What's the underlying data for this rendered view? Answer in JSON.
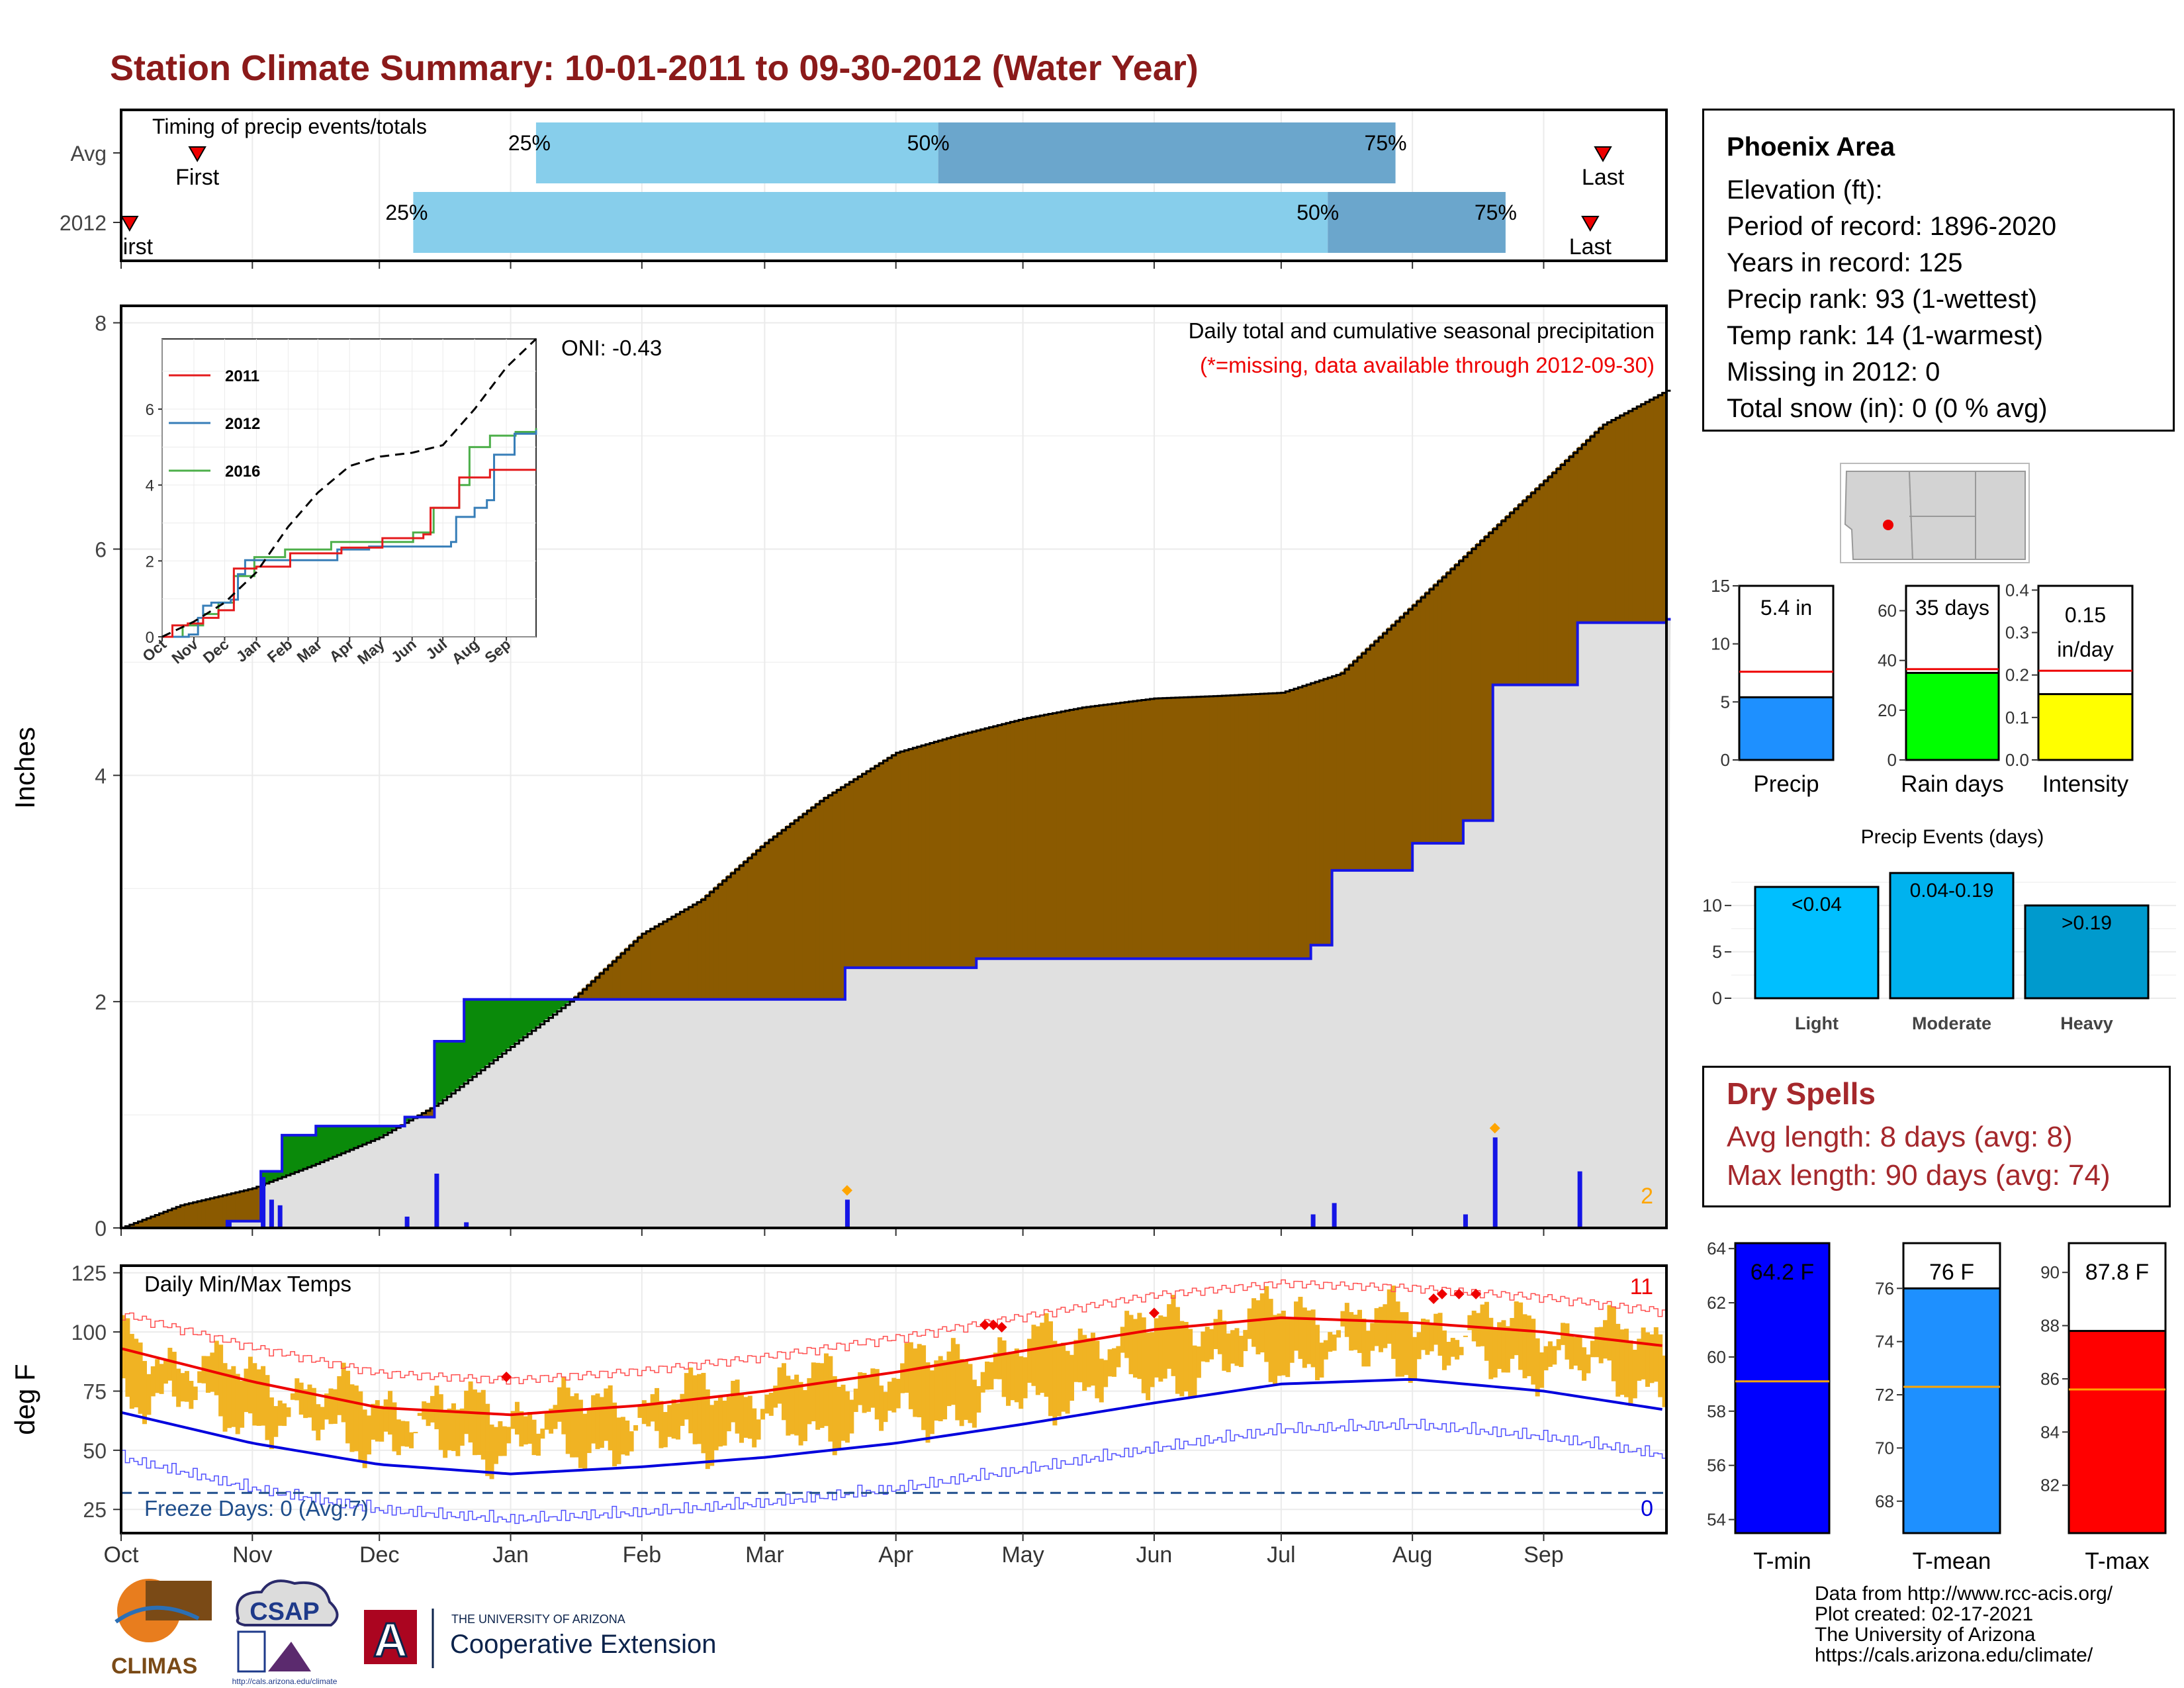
{
  "title": "Station Climate Summary: 10-01-2011 to 09-30-2012 (Water Year)",
  "timing": {
    "label": "Timing of precip events/totals",
    "rows": [
      "Avg",
      "2012"
    ],
    "first_label": "First",
    "first_label_2012": "irst",
    "last_label": "Last",
    "pct_labels": [
      "25%",
      "50%",
      "75%"
    ]
  },
  "precip": {
    "ylabel": "Inches",
    "yticks": [
      "0",
      "2",
      "4",
      "6",
      "8"
    ],
    "note1": "Daily total and cumulative seasonal precipitation",
    "note2": "(*=missing, data available through 2012-09-30)",
    "oni": "ONI: -0.43",
    "corner_count": "2",
    "inset": {
      "legend": [
        "2011",
        "2012",
        "2016"
      ],
      "colors": [
        "#e41a1c",
        "#377eb8",
        "#4daf4a"
      ],
      "yticks": [
        "0",
        "2",
        "4",
        "6"
      ],
      "months": [
        "Oct",
        "Nov",
        "Dec",
        "Jan",
        "Feb",
        "Mar",
        "Apr",
        "May",
        "Jun",
        "Jul",
        "Aug",
        "Sep"
      ]
    }
  },
  "temps": {
    "ylabel": "deg F",
    "yticks": [
      "25",
      "50",
      "75",
      "100",
      "125"
    ],
    "label": "Daily Min/Max Temps",
    "freeze": "Freeze Days: 0 (Avg:7)",
    "max_count": "11",
    "min_count": "0"
  },
  "months": [
    "Oct",
    "Nov",
    "Dec",
    "Jan",
    "Feb",
    "Mar",
    "Apr",
    "May",
    "Jun",
    "Jul",
    "Aug",
    "Sep"
  ],
  "info": {
    "name": "Phoenix Area",
    "lines": [
      "Elevation (ft):",
      "Period of record: 1896-2020",
      "Years in record: 125",
      "Precip rank: 93 (1-wettest)",
      "Temp rank: 14 (1-warmest)",
      "Missing in 2012: 0",
      "Total snow (in): 0 (0 % avg)"
    ]
  },
  "summary_bars": [
    {
      "name": "Precip",
      "value_label": "5.4 in",
      "yticks": [
        "0",
        "5",
        "10",
        "15"
      ],
      "value": 5.4,
      "avg": 7.6,
      "ymax": 15,
      "color": "#1e90ff"
    },
    {
      "name": "Rain days",
      "value_label": "35 days",
      "yticks": [
        "0",
        "20",
        "40",
        "60"
      ],
      "value": 35,
      "avg": 36.5,
      "ymax": 70,
      "color": "#00ff00"
    },
    {
      "name": "Intensity",
      "value_label": "0.15 in/day",
      "yticks": [
        "0.0",
        "0.1",
        "0.2",
        "0.3",
        "0.4"
      ],
      "value": 0.155,
      "avg": 0.21,
      "ymax": 0.41,
      "color": "#ffff00"
    }
  ],
  "precip_events": {
    "title": "Precip Events (days)",
    "yticks": [
      "0",
      "5",
      "10"
    ],
    "bars": [
      {
        "cat": "Light",
        "label": "<0.04",
        "value": 12
      },
      {
        "cat": "Moderate",
        "label": "0.04-0.19",
        "value": 13.5
      },
      {
        "cat": "Heavy",
        "label": ">0.19",
        "value": 10
      }
    ]
  },
  "dry_spells": {
    "title": "Dry Spells",
    "lines": [
      "Avg length: 8 days (avg: 8)",
      "Max length: 90 days (avg: 74)"
    ]
  },
  "temp_bars": [
    {
      "name": "T-min",
      "value_label": "64.2 F",
      "yticks": [
        "54",
        "56",
        "58",
        "60",
        "62",
        "64"
      ],
      "value": 64.2,
      "avg": 59.1,
      "ymin": 53.5,
      "ymax": 64.2,
      "color": "#0000ff"
    },
    {
      "name": "T-mean",
      "value_label": "76 F",
      "yticks": [
        "68",
        "70",
        "72",
        "74",
        "76"
      ],
      "value": 76,
      "avg": 72.3,
      "ymin": 66.8,
      "ymax": 77.7,
      "color": "#1e90ff"
    },
    {
      "name": "T-max",
      "value_label": "87.8 F",
      "yticks": [
        "82",
        "84",
        "86",
        "88",
        "90"
      ],
      "value": 87.8,
      "avg": 85.6,
      "ymin": 80.2,
      "ymax": 91.1,
      "color": "#ff0000"
    }
  ],
  "logos": {
    "climas": "CLIMAS",
    "csap": "CSAP",
    "csap_url": "http://cals.arizona.edu/climate",
    "ua_letter": "A",
    "ua_line1": "THE UNIVERSITY OF ARIZONA",
    "ua_line2": "Cooperative Extension"
  },
  "credits": [
    "Data from http://www.rcc-acis.org/",
    "Plot created: 02-17-2021",
    "The University of Arizona",
    "https://cals.arizona.edu/climate/"
  ],
  "chart_data": [
    {
      "type": "bar",
      "title": "Timing of precip events/totals",
      "rows": [
        {
          "name": "Avg",
          "first": "2011-10-19",
          "q25": "2012-01-07",
          "q50": "2012-04-11",
          "q75": "2012-07-28",
          "last": "2012-09-15"
        },
        {
          "name": "2012",
          "first": "2011-10-03",
          "q25": "2011-12-09",
          "q50": "2012-07-12",
          "q75": "2012-08-23",
          "last": "2012-09-12"
        }
      ]
    },
    {
      "type": "area",
      "title": "Daily total and cumulative seasonal precipitation",
      "ylabel": "Inches",
      "ylim": [
        0,
        8
      ],
      "series": [
        {
          "name": "average cumulative",
          "points": [
            [
              "2011-10-01",
              0
            ],
            [
              "2011-10-15",
              0.2
            ],
            [
              "2011-11-01",
              0.35
            ],
            [
              "2011-11-15",
              0.55
            ],
            [
              "2011-12-01",
              0.8
            ],
            [
              "2011-12-15",
              1.1
            ],
            [
              "2012-01-01",
              1.6
            ],
            [
              "2012-01-15",
              2.0
            ],
            [
              "2012-02-01",
              2.6
            ],
            [
              "2012-02-15",
              2.9
            ],
            [
              "2012-03-01",
              3.4
            ],
            [
              "2012-03-15",
              3.8
            ],
            [
              "2012-04-01",
              4.2
            ],
            [
              "2012-04-15",
              4.35
            ],
            [
              "2012-05-01",
              4.5
            ],
            [
              "2012-05-15",
              4.6
            ],
            [
              "2012-06-01",
              4.68
            ],
            [
              "2012-06-15",
              4.7
            ],
            [
              "2012-07-01",
              4.73
            ],
            [
              "2012-07-15",
              4.9
            ],
            [
              "2012-08-01",
              5.5
            ],
            [
              "2012-08-15",
              6.0
            ],
            [
              "2012-09-01",
              6.6
            ],
            [
              "2012-09-15",
              7.1
            ],
            [
              "2012-09-30",
              7.4
            ]
          ]
        },
        {
          "name": "2012 cumulative",
          "points": [
            [
              "2011-10-01",
              0
            ],
            [
              "2011-10-26",
              0.06
            ],
            [
              "2011-11-03",
              0.5
            ],
            [
              "2011-11-08",
              0.82
            ],
            [
              "2011-11-16",
              0.9
            ],
            [
              "2011-12-07",
              0.98
            ],
            [
              "2011-12-14",
              1.65
            ],
            [
              "2011-12-21",
              2.02
            ],
            [
              "2012-01-01",
              2.02
            ],
            [
              "2012-03-20",
              2.3
            ],
            [
              "2012-04-20",
              2.38
            ],
            [
              "2012-07-08",
              2.5
            ],
            [
              "2012-07-13",
              3.16
            ],
            [
              "2012-08-01",
              3.4
            ],
            [
              "2012-08-13",
              3.6
            ],
            [
              "2012-08-20",
              4.8
            ],
            [
              "2012-09-09",
              5.35
            ],
            [
              "2012-09-30",
              5.38
            ]
          ]
        }
      ],
      "daily_spikes": [
        [
          "2011-10-26",
          0.06
        ],
        [
          "2011-11-03",
          0.45
        ],
        [
          "2011-11-05",
          0.25
        ],
        [
          "2011-11-07",
          0.2
        ],
        [
          "2011-12-07",
          0.1
        ],
        [
          "2011-12-14",
          0.48
        ],
        [
          "2011-12-21",
          0.05
        ],
        [
          "2012-03-20",
          0.25
        ],
        [
          "2012-07-08",
          0.12
        ],
        [
          "2012-07-13",
          0.22
        ],
        [
          "2012-08-13",
          0.12
        ],
        [
          "2012-08-20",
          0.8
        ],
        [
          "2012-09-09",
          0.5
        ]
      ]
    },
    {
      "type": "line",
      "title": "Daily Min/Max Temps",
      "ylabel": "deg F",
      "ylim": [
        15,
        128
      ],
      "series": [
        {
          "name": "normal max",
          "points": [
            [
              "2011-10-01",
              93
            ],
            [
              "2011-11-01",
              79
            ],
            [
              "2011-12-01",
              68
            ],
            [
              "2012-01-01",
              65
            ],
            [
              "2012-02-01",
              69
            ],
            [
              "2012-03-01",
              75
            ],
            [
              "2012-04-01",
              83
            ],
            [
              "2012-05-01",
              92
            ],
            [
              "2012-06-01",
              101
            ],
            [
              "2012-07-01",
              106
            ],
            [
              "2012-08-01",
              104
            ],
            [
              "2012-09-01",
              100
            ],
            [
              "2012-09-30",
              94
            ]
          ]
        },
        {
          "name": "normal min",
          "points": [
            [
              "2011-10-01",
              66
            ],
            [
              "2011-11-01",
              53
            ],
            [
              "2011-12-01",
              44
            ],
            [
              "2012-01-01",
              40
            ],
            [
              "2012-02-01",
              43
            ],
            [
              "2012-03-01",
              47
            ],
            [
              "2012-04-01",
              53
            ],
            [
              "2012-05-01",
              61
            ],
            [
              "2012-06-01",
              70
            ],
            [
              "2012-07-01",
              78
            ],
            [
              "2012-08-01",
              80
            ],
            [
              "2012-09-01",
              75
            ],
            [
              "2012-09-30",
              67
            ]
          ]
        }
      ]
    },
    {
      "type": "bar",
      "title": "Precip Events (days)",
      "categories": [
        "Light",
        "Moderate",
        "Heavy"
      ],
      "values": [
        12,
        13.5,
        10
      ]
    }
  ]
}
